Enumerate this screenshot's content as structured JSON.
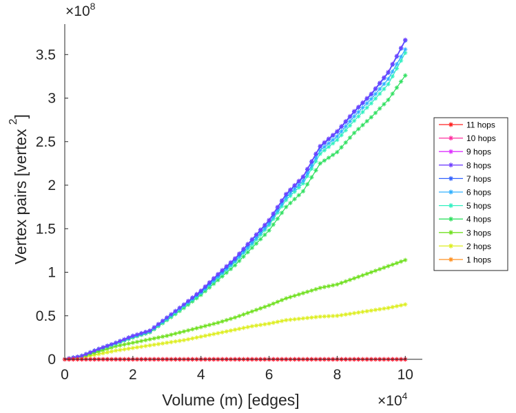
{
  "chart_data": {
    "type": "line",
    "xlabel": "Volume (m) [edges]",
    "ylabel": "Vertex pairs [vertex",
    "ylabel_superscript": "2",
    "ylabel_close": "]",
    "x_multiplier": {
      "base": "×10",
      "exp": "4"
    },
    "y_multiplier": {
      "base": "×10",
      "exp": "8"
    },
    "xlim": [
      0,
      10.5
    ],
    "ylim": [
      0,
      3.85
    ],
    "xticks": [
      0,
      2,
      4,
      6,
      8,
      10
    ],
    "xtick_labels": [
      "0",
      "2",
      "4",
      "6",
      "8",
      "10"
    ],
    "yticks": [
      0,
      0.5,
      1,
      1.5,
      2,
      2.5,
      3,
      3.5
    ],
    "ytick_labels": [
      "0",
      "0.5",
      "1",
      "1.5",
      "2",
      "2.5",
      "3",
      "3.5"
    ],
    "grid": false,
    "legend_position": "right",
    "x": [
      0,
      0.5,
      1,
      1.5,
      2,
      2.5,
      3,
      3.5,
      4,
      4.5,
      5,
      5.5,
      6,
      6.5,
      7,
      7.5,
      8,
      8.5,
      9,
      9.5,
      10
    ],
    "series": [
      {
        "name": "11 hops",
        "color": "#ff2020",
        "values": [
          0,
          0,
          0,
          0,
          0,
          0,
          0,
          0,
          0,
          0,
          0,
          0,
          0,
          0,
          0,
          0,
          0,
          0,
          0,
          0,
          0
        ]
      },
      {
        "name": "10 hops",
        "color": "#ff30a0",
        "values": [
          0,
          0,
          0,
          0,
          0,
          0,
          0,
          0,
          0,
          0,
          0,
          0,
          0,
          0,
          0,
          0,
          0,
          0,
          0,
          0,
          0
        ]
      },
      {
        "name": "9 hops",
        "color": "#dd30ff",
        "values": [
          0,
          0,
          0,
          0,
          0,
          0,
          0,
          0,
          0,
          0,
          0,
          0,
          0,
          0,
          0,
          0,
          0,
          0,
          0,
          0,
          0
        ]
      },
      {
        "name": "8 hops",
        "color": "#7040ff",
        "values": [
          0,
          0.04,
          0.12,
          0.19,
          0.27,
          0.33,
          0.48,
          0.63,
          0.79,
          0.98,
          1.16,
          1.38,
          1.6,
          1.9,
          2.1,
          2.45,
          2.62,
          2.85,
          3.05,
          3.3,
          3.67
        ]
      },
      {
        "name": "7 hops",
        "color": "#3060ff",
        "values": [
          0,
          0.04,
          0.12,
          0.19,
          0.27,
          0.33,
          0.48,
          0.63,
          0.78,
          0.97,
          1.15,
          1.37,
          1.59,
          1.89,
          2.09,
          2.44,
          2.61,
          2.84,
          3.04,
          3.29,
          3.66
        ]
      },
      {
        "name": "6 hops",
        "color": "#30b0ff",
        "values": [
          0,
          0.04,
          0.12,
          0.19,
          0.26,
          0.32,
          0.47,
          0.62,
          0.77,
          0.95,
          1.13,
          1.34,
          1.56,
          1.86,
          2.05,
          2.4,
          2.56,
          2.79,
          2.99,
          3.22,
          3.56
        ]
      },
      {
        "name": "5 hops",
        "color": "#30f0c0",
        "values": [
          0,
          0.04,
          0.12,
          0.18,
          0.26,
          0.32,
          0.46,
          0.61,
          0.76,
          0.94,
          1.12,
          1.32,
          1.54,
          1.83,
          2.02,
          2.36,
          2.52,
          2.74,
          2.94,
          3.16,
          3.52
        ]
      },
      {
        "name": "4 hops",
        "color": "#30e060",
        "values": [
          0,
          0.04,
          0.11,
          0.18,
          0.25,
          0.31,
          0.45,
          0.59,
          0.74,
          0.91,
          1.08,
          1.28,
          1.48,
          1.75,
          1.93,
          2.25,
          2.38,
          2.6,
          2.78,
          2.98,
          3.26
        ]
      },
      {
        "name": "3 hops",
        "color": "#70e020",
        "values": [
          0,
          0.03,
          0.09,
          0.15,
          0.19,
          0.23,
          0.27,
          0.32,
          0.37,
          0.42,
          0.48,
          0.55,
          0.62,
          0.7,
          0.76,
          0.82,
          0.86,
          0.93,
          1.0,
          1.07,
          1.14
        ]
      },
      {
        "name": "2 hops",
        "color": "#ddee20",
        "values": [
          0,
          0.02,
          0.06,
          0.1,
          0.13,
          0.16,
          0.19,
          0.22,
          0.26,
          0.3,
          0.34,
          0.38,
          0.41,
          0.45,
          0.47,
          0.49,
          0.5,
          0.53,
          0.56,
          0.59,
          0.63
        ]
      },
      {
        "name": "1 hops",
        "color": "#ff9020",
        "values": [
          0,
          0,
          0,
          0,
          0,
          0,
          0,
          0,
          0,
          0,
          0,
          0,
          0,
          0,
          0,
          0,
          0,
          0,
          0,
          0,
          0
        ]
      }
    ]
  }
}
